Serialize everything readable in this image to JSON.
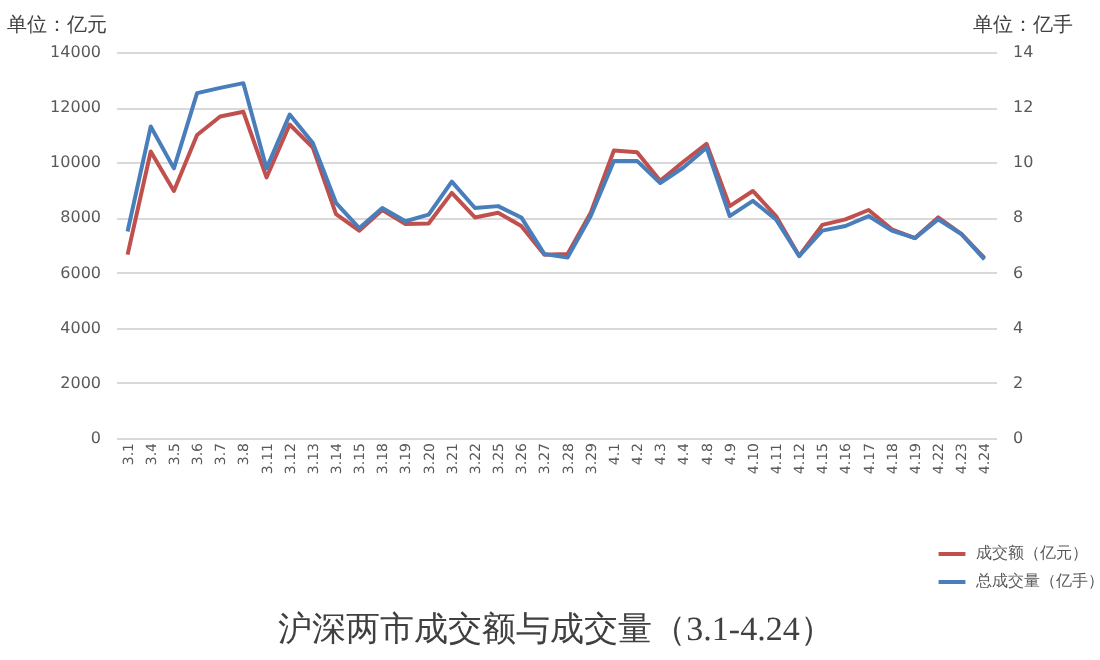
{
  "chart_data": {
    "type": "line",
    "title": "沪深两市成交额与成交量（3.1-4.24）",
    "ylabel": "单位：亿元",
    "y2label": "单位：亿手",
    "categories": [
      "3.1",
      "3.4",
      "3.5",
      "3.6",
      "3.7",
      "3.8",
      "3.11",
      "3.12",
      "3.13",
      "3.14",
      "3.15",
      "3.18",
      "3.19",
      "3.20",
      "3.21",
      "3.22",
      "3.25",
      "3.26",
      "3.27",
      "3.28",
      "3.29",
      "4.1",
      "4.2",
      "4.3",
      "4.4",
      "4.8",
      "4.9",
      "4.10",
      "4.11",
      "4.12",
      "4.15",
      "4.16",
      "4.17",
      "4.18",
      "4.19",
      "4.22",
      "4.23",
      "4.24"
    ],
    "series": [
      {
        "name": "成交额（亿元）",
        "color": "#c0504d",
        "values": [
          6650,
          10390,
          8960,
          10990,
          11660,
          11830,
          9450,
          11370,
          10530,
          8120,
          7520,
          8270,
          7760,
          7780,
          8890,
          8000,
          8170,
          7690,
          6650,
          6670,
          8170,
          10430,
          10360,
          9330,
          10020,
          10670,
          8410,
          8960,
          8050,
          6600,
          7730,
          7930,
          8270,
          7570,
          7250,
          8000,
          7400,
          6530
        ]
      },
      {
        "name": "总成交量（亿手）",
        "color": "#4a7ebb",
        "axis": "y2",
        "values": [
          7.49,
          11.3,
          9.78,
          12.51,
          12.7,
          12.87,
          9.78,
          11.73,
          10.7,
          8.53,
          7.61,
          8.34,
          7.86,
          8.1,
          9.3,
          8.34,
          8.41,
          8.0,
          6.67,
          6.55,
          8.05,
          10.05,
          10.05,
          9.25,
          9.81,
          10.53,
          8.05,
          8.6,
          7.93,
          6.6,
          7.52,
          7.69,
          8.05,
          7.52,
          7.25,
          7.93,
          7.4,
          6.48
        ]
      }
    ],
    "ylim": [
      0,
      14000
    ],
    "yticks": [
      0,
      2000,
      4000,
      6000,
      8000,
      10000,
      12000,
      14000
    ],
    "y2lim": [
      0,
      14
    ],
    "y2ticks": [
      0,
      2,
      4,
      6,
      8,
      10,
      12,
      14
    ],
    "grid": "y",
    "legend": "bottom right"
  }
}
